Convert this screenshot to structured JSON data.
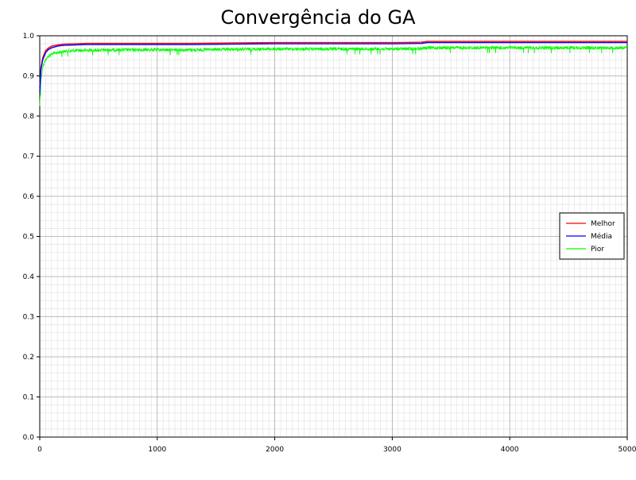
{
  "chart_data": {
    "type": "line",
    "title": "Convergência do GA",
    "xlabel": "",
    "ylabel": "",
    "xlim": [
      0,
      5000
    ],
    "ylim": [
      0.0,
      1.0
    ],
    "grid": true,
    "minor_grid": true,
    "legend_position": "right",
    "x_ticks": [
      "0",
      "1000",
      "2000",
      "3000",
      "4000",
      "5000"
    ],
    "y_ticks": [
      "0.0",
      "0.1",
      "0.2",
      "0.3",
      "0.4",
      "0.5",
      "0.6",
      "0.7",
      "0.8",
      "0.9",
      "1.0"
    ],
    "series": [
      {
        "name": "Melhor",
        "color": "#ff0000",
        "points": [
          [
            0,
            0.87
          ],
          [
            10,
            0.92
          ],
          [
            25,
            0.945
          ],
          [
            50,
            0.963
          ],
          [
            75,
            0.97
          ],
          [
            100,
            0.974
          ],
          [
            150,
            0.977
          ],
          [
            200,
            0.979
          ],
          [
            300,
            0.98
          ],
          [
            400,
            0.981
          ],
          [
            700,
            0.981
          ],
          [
            1000,
            0.981
          ],
          [
            1300,
            0.981
          ],
          [
            1600,
            0.982
          ],
          [
            2000,
            0.983
          ],
          [
            2500,
            0.983
          ],
          [
            3000,
            0.983
          ],
          [
            3250,
            0.984
          ],
          [
            3300,
            0.986
          ],
          [
            3500,
            0.986
          ],
          [
            4000,
            0.986
          ],
          [
            4500,
            0.986
          ],
          [
            5000,
            0.986
          ]
        ]
      },
      {
        "name": "Média",
        "color": "#0000ff",
        "points": [
          [
            0,
            0.86
          ],
          [
            10,
            0.915
          ],
          [
            25,
            0.94
          ],
          [
            50,
            0.958
          ],
          [
            75,
            0.966
          ],
          [
            100,
            0.97
          ],
          [
            150,
            0.974
          ],
          [
            200,
            0.976
          ],
          [
            300,
            0.977
          ],
          [
            400,
            0.978
          ],
          [
            700,
            0.978
          ],
          [
            1000,
            0.978
          ],
          [
            1300,
            0.978
          ],
          [
            1600,
            0.979
          ],
          [
            2000,
            0.98
          ],
          [
            2500,
            0.98
          ],
          [
            3000,
            0.98
          ],
          [
            3250,
            0.981
          ],
          [
            3300,
            0.983
          ],
          [
            3500,
            0.983
          ],
          [
            4000,
            0.983
          ],
          [
            4500,
            0.983
          ],
          [
            5000,
            0.983
          ]
        ]
      },
      {
        "name": "Pior",
        "color": "#00ff00",
        "noise": 0.008,
        "points": [
          [
            0,
            0.83
          ],
          [
            10,
            0.895
          ],
          [
            25,
            0.925
          ],
          [
            50,
            0.945
          ],
          [
            75,
            0.953
          ],
          [
            100,
            0.958
          ],
          [
            150,
            0.962
          ],
          [
            200,
            0.965
          ],
          [
            300,
            0.967
          ],
          [
            400,
            0.968
          ],
          [
            700,
            0.969
          ],
          [
            1000,
            0.969
          ],
          [
            1300,
            0.969
          ],
          [
            1600,
            0.97
          ],
          [
            2000,
            0.971
          ],
          [
            2500,
            0.971
          ],
          [
            3000,
            0.971
          ],
          [
            3250,
            0.972
          ],
          [
            3300,
            0.974
          ],
          [
            3500,
            0.974
          ],
          [
            4000,
            0.974
          ],
          [
            4500,
            0.974
          ],
          [
            5000,
            0.974
          ]
        ]
      }
    ]
  }
}
